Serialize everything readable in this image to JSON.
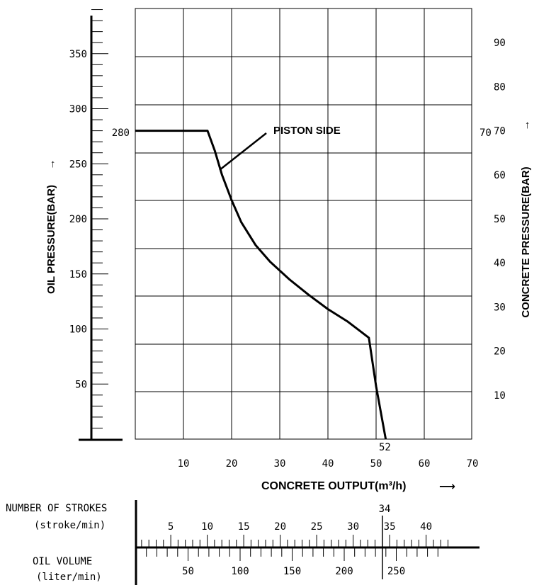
{
  "chart_data": {
    "type": "line",
    "title": "",
    "xlabel": "CONCRETE OUTPUT(m³/h)",
    "ylabel": "OIL PRESSURE(BAR)",
    "y2label": "CONCRETE PRESSURE(BAR)",
    "xlim": [
      0,
      70
    ],
    "ylim": [
      0,
      390
    ],
    "grid": true,
    "x_ticks": [
      10,
      20,
      30,
      40,
      50,
      60,
      70
    ],
    "y_ticks": [
      50,
      100,
      150,
      200,
      250,
      300,
      350
    ],
    "y2_ticks": [
      10,
      20,
      30,
      40,
      50,
      60,
      70,
      80,
      90
    ],
    "series": [
      {
        "name": "PISTON SIDE",
        "x": [
          0,
          15,
          16.5,
          18,
          20,
          22,
          25,
          28,
          32,
          36,
          40,
          44,
          48.5,
          50,
          52
        ],
        "y": [
          280,
          280,
          262,
          240,
          217,
          197,
          176,
          161,
          145,
          131,
          118,
          107,
          92,
          48,
          0
        ]
      }
    ],
    "annotations": {
      "oil_pressure_280": "280",
      "concrete_pressure_70": "70",
      "output_52": "52",
      "strokes_34": "34"
    }
  },
  "bottom_scale": {
    "strokes_label_1": "NUMBER OF STROKES",
    "strokes_label_2": "(stroke/min)",
    "volume_label_1": "OIL VOLUME",
    "volume_label_2": "(liter/min)",
    "strokes_ticks": [
      5,
      10,
      15,
      20,
      25,
      30,
      35,
      40
    ],
    "volume_ticks": [
      50,
      100,
      150,
      200,
      250
    ]
  }
}
